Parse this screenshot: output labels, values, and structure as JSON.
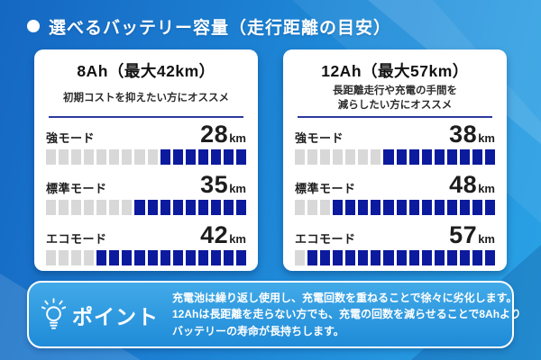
{
  "header": {
    "title": "選べるバッテリー容量（走行距離の目安）"
  },
  "cards": [
    {
      "id": "8ah",
      "title": "8Ah（最大42km）",
      "subtitle_lines": [
        "初期コストを抑えたい方にオススメ"
      ],
      "rows": [
        {
          "mode": "強モード",
          "value": "28",
          "unit": "km",
          "segments_total": 16,
          "segments_filled": 7
        },
        {
          "mode": "標準モード",
          "value": "35",
          "unit": "km",
          "segments_total": 16,
          "segments_filled": 9
        },
        {
          "mode": "エコモード",
          "value": "42",
          "unit": "km",
          "segments_total": 16,
          "segments_filled": 12
        }
      ]
    },
    {
      "id": "12ah",
      "title": "12Ah（最大57km）",
      "subtitle_lines": [
        "長距離走行や充電の手間を",
        "減らしたい方にオススメ"
      ],
      "rows": [
        {
          "mode": "強モード",
          "value": "38",
          "unit": "km",
          "segments_total": 16,
          "segments_filled": 9
        },
        {
          "mode": "標準モード",
          "value": "48",
          "unit": "km",
          "segments_total": 16,
          "segments_filled": 13
        },
        {
          "mode": "エコモード",
          "value": "57",
          "unit": "km",
          "segments_total": 16,
          "segments_filled": 15
        }
      ]
    }
  ],
  "point": {
    "label": "ポイント",
    "icon": "lightbulb-icon",
    "lines": [
      "充電池は繰り返し使用し、充電回数を重ねることで徐々に劣化します。",
      "12Ahは長距離を走らない方でも、充電の回数を減らせることで8Ahより",
      "バッテリーの寿命が長持ちします。"
    ]
  },
  "colors": {
    "bar_filled": "#0c1a9e",
    "bar_empty": "#d8d8d8",
    "divider": "#2b3a9e",
    "background_blue": "#1e87d6",
    "card_bg": "#ffffff",
    "text_dark": "#1d1d1d",
    "point_box_blue": "#2f9ce0"
  },
  "chart_data": [
    {
      "type": "bar",
      "title": "8Ah（最大42km）",
      "subtitle": "初期コストを抑えたい方にオススメ",
      "categories": [
        "強モード",
        "標準モード",
        "エコモード"
      ],
      "values": [
        28,
        35,
        42
      ],
      "unit": "km",
      "max_range_km": 42,
      "segments_total": 16,
      "segments_filled": [
        7,
        9,
        12
      ],
      "bar_color": "#0c1a9e",
      "empty_color": "#d8d8d8",
      "orientation": "horizontal-segmented",
      "fill_direction": "right"
    },
    {
      "type": "bar",
      "title": "12Ah（最大57km）",
      "subtitle": "長距離走行や充電の手間を減らしたい方にオススメ",
      "categories": [
        "強モード",
        "標準モード",
        "エコモード"
      ],
      "values": [
        38,
        48,
        57
      ],
      "unit": "km",
      "max_range_km": 57,
      "segments_total": 16,
      "segments_filled": [
        9,
        13,
        15
      ],
      "bar_color": "#0c1a9e",
      "empty_color": "#d8d8d8",
      "orientation": "horizontal-segmented",
      "fill_direction": "right"
    }
  ]
}
